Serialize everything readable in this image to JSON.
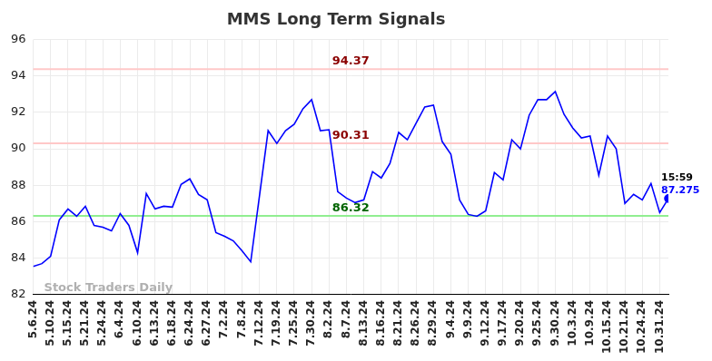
{
  "chart_data": {
    "type": "line",
    "title": "MMS Long Term Signals",
    "categories": [
      "5.6.24",
      null,
      "5.10.24",
      null,
      "5.15.24",
      null,
      "5.21.24",
      null,
      "5.24.24",
      null,
      "6.4.24",
      null,
      "6.10.24",
      null,
      "6.13.24",
      null,
      "6.18.24",
      null,
      "6.24.24",
      null,
      "6.27.24",
      null,
      "7.2.24",
      null,
      "7.8.24",
      null,
      "7.12.24",
      null,
      "7.19.24",
      null,
      "7.25.24",
      null,
      "7.30.24",
      null,
      "8.2.24",
      null,
      "8.7.24",
      null,
      "8.13.24",
      null,
      "8.16.24",
      null,
      "8.21.24",
      null,
      "8.26.24",
      null,
      "8.29.24",
      null,
      "9.4.24",
      null,
      "9.9.24",
      null,
      "9.12.24",
      null,
      "9.17.24",
      null,
      "9.20.24",
      null,
      "9.25.24",
      null,
      "9.30.24",
      null,
      "10.3.24",
      null,
      "10.9.24",
      null,
      "10.15.24",
      null,
      "10.21.24",
      null,
      "10.24.24",
      null,
      "10.31.24",
      null
    ],
    "values": [
      83.55,
      83.7,
      84.1,
      86.1,
      86.7,
      86.3,
      86.85,
      85.8,
      85.7,
      85.5,
      86.45,
      85.8,
      84.3,
      87.55,
      86.7,
      86.85,
      86.8,
      88.05,
      88.35,
      87.5,
      87.2,
      85.4,
      85.2,
      84.95,
      84.4,
      83.8,
      87.4,
      91.0,
      90.3,
      91.0,
      91.35,
      92.2,
      92.7,
      91.0,
      91.05,
      87.65,
      87.3,
      87.05,
      87.2,
      88.75,
      88.4,
      89.2,
      90.9,
      90.5,
      91.4,
      92.3,
      92.4,
      90.4,
      89.7,
      87.2,
      86.4,
      86.3,
      86.6,
      88.7,
      88.3,
      90.5,
      90.0,
      91.85,
      92.7,
      92.7,
      93.15,
      91.9,
      91.15,
      90.6,
      90.7,
      88.55,
      90.7,
      90.0,
      87.0,
      87.5,
      87.2,
      88.1,
      86.5,
      87.275
    ],
    "color": "#0000ff",
    "ylim": [
      82,
      96
    ],
    "yticks": [
      82,
      84,
      86,
      88,
      90,
      92,
      94,
      96
    ],
    "grid": true,
    "annotations": [
      {
        "type": "hline",
        "y": 94.37,
        "text": "94.37",
        "color": "#8b0000",
        "line_color": "#ffc8c8"
      },
      {
        "type": "hline",
        "y": 90.31,
        "text": "90.31",
        "color": "#8b0000",
        "line_color": "#ffc8c8"
      },
      {
        "type": "hline",
        "y": 86.32,
        "text": "86.32",
        "color": "#006400",
        "line_color": "#90ee90"
      },
      {
        "type": "last_point",
        "text": "15:59",
        "color": "#000000"
      },
      {
        "type": "last_point_value",
        "text": "87.275",
        "color": "#0000ff"
      },
      {
        "type": "watermark",
        "text": "Stock Traders Daily",
        "color": "#b0b0b0"
      }
    ]
  }
}
